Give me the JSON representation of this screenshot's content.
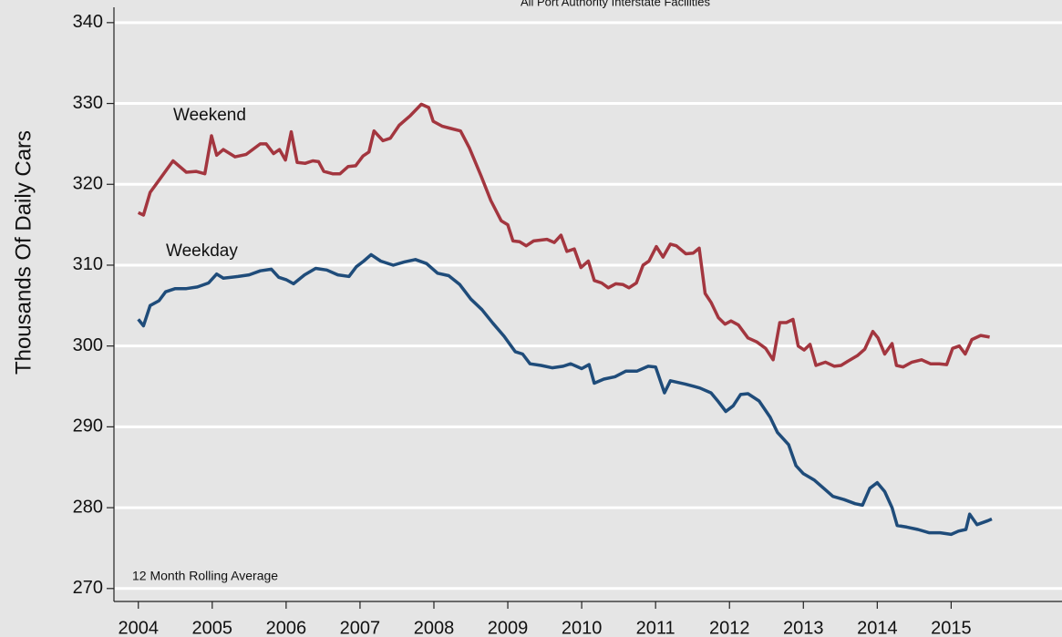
{
  "chart_data": {
    "type": "line",
    "title": "All Port Authority Interstate Facilities",
    "y_label": "Thousands Of Daily Cars",
    "annotation": "12 Month Rolling Average",
    "xlim": [
      2003.67,
      2016.5
    ],
    "xticks": [
      2004,
      2005,
      2006,
      2007,
      2008,
      2009,
      2010,
      2011,
      2012,
      2013,
      2014,
      2015
    ],
    "ylim": [
      268.4,
      342.8
    ],
    "yticks": [
      270,
      280,
      290,
      300,
      310,
      320,
      330,
      340
    ],
    "grid": true,
    "series": [
      {
        "name": "Weekend",
        "color": "#a3363f",
        "x": [
          2004.0,
          2004.07,
          2004.16,
          2004.28,
          2004.47,
          2004.65,
          2004.78,
          2004.9,
          2004.99,
          2005.06,
          2005.15,
          2005.31,
          2005.46,
          2005.65,
          2005.73,
          2005.83,
          2005.91,
          2005.99,
          2006.07,
          2006.15,
          2006.26,
          2006.36,
          2006.44,
          2006.51,
          2006.63,
          2006.73,
          2006.84,
          2006.94,
          2007.04,
          2007.12,
          2007.19,
          2007.31,
          2007.41,
          2007.53,
          2007.68,
          2007.83,
          2007.93,
          2007.99,
          2008.11,
          2008.23,
          2008.36,
          2008.48,
          2008.64,
          2008.77,
          2008.91,
          2009.0,
          2009.07,
          2009.16,
          2009.25,
          2009.35,
          2009.53,
          2009.63,
          2009.72,
          2009.8,
          2009.9,
          2009.99,
          2010.09,
          2010.17,
          2010.27,
          2010.36,
          2010.46,
          2010.56,
          2010.64,
          2010.74,
          2010.83,
          2010.91,
          2011.01,
          2011.1,
          2011.2,
          2011.28,
          2011.41,
          2011.51,
          2011.59,
          2011.67,
          2011.75,
          2011.85,
          2011.94,
          2012.02,
          2012.12,
          2012.25,
          2012.37,
          2012.49,
          2012.59,
          2012.68,
          2012.77,
          2012.86,
          2012.93,
          2013.01,
          2013.09,
          2013.17,
          2013.3,
          2013.42,
          2013.51,
          2013.6,
          2013.73,
          2013.83,
          2013.94,
          2014.01,
          2014.1,
          2014.2,
          2014.26,
          2014.35,
          2014.47,
          2014.6,
          2014.72,
          2014.84,
          2014.94,
          2015.02,
          2015.11,
          2015.19,
          2015.28,
          2015.4,
          2015.52
        ],
        "values": [
          316.5,
          316.2,
          319,
          320.5,
          322.9,
          321.5,
          321.6,
          321.3,
          326,
          323.6,
          324.3,
          323.4,
          323.7,
          325,
          325,
          323.8,
          324.3,
          323,
          326.5,
          322.7,
          322.6,
          322.9,
          322.8,
          321.6,
          321.3,
          321.3,
          322.2,
          322.3,
          323.5,
          324,
          326.6,
          325.4,
          325.7,
          327.3,
          328.5,
          329.9,
          329.5,
          327.8,
          327.2,
          326.9,
          326.6,
          324.5,
          321,
          318,
          315.5,
          315,
          313,
          312.9,
          312.4,
          313,
          313.2,
          312.8,
          313.7,
          311.7,
          312,
          309.7,
          310.5,
          308.1,
          307.8,
          307.2,
          307.7,
          307.6,
          307.2,
          307.8,
          310,
          310.5,
          312.3,
          311,
          312.6,
          312.4,
          311.4,
          311.5,
          312.1,
          306.5,
          305.4,
          303.5,
          302.7,
          303.1,
          302.6,
          301,
          300.5,
          299.7,
          298.3,
          302.9,
          302.9,
          303.3,
          300,
          299.5,
          300.2,
          297.6,
          298,
          297.5,
          297.6,
          298.1,
          298.8,
          299.6,
          301.8,
          301,
          299,
          300.3,
          297.6,
          297.4,
          298,
          298.3,
          297.8,
          297.8,
          297.7,
          299.7,
          300,
          299,
          300.8,
          301.3,
          301.1
        ]
      },
      {
        "name": "Weekday",
        "color": "#1f4c7a",
        "x": [
          2004.0,
          2004.07,
          2004.16,
          2004.28,
          2004.37,
          2004.5,
          2004.65,
          2004.8,
          2004.95,
          2005.06,
          2005.15,
          2005.35,
          2005.5,
          2005.65,
          2005.8,
          2005.9,
          2006.0,
          2006.1,
          2006.25,
          2006.4,
          2006.55,
          2006.7,
          2006.85,
          2006.95,
          2007.05,
          2007.15,
          2007.28,
          2007.45,
          2007.6,
          2007.75,
          2007.9,
          2008.05,
          2008.2,
          2008.35,
          2008.5,
          2008.65,
          2008.8,
          2008.95,
          2009.1,
          2009.2,
          2009.3,
          2009.45,
          2009.6,
          2009.75,
          2009.85,
          2010.0,
          2010.1,
          2010.17,
          2010.3,
          2010.45,
          2010.6,
          2010.75,
          2010.9,
          2011.0,
          2011.12,
          2011.2,
          2011.4,
          2011.6,
          2011.75,
          2011.85,
          2011.95,
          2012.05,
          2012.15,
          2012.25,
          2012.4,
          2012.55,
          2012.65,
          2012.8,
          2012.9,
          2013.0,
          2013.15,
          2013.3,
          2013.4,
          2013.55,
          2013.7,
          2013.8,
          2013.9,
          2014.0,
          2014.1,
          2014.2,
          2014.27,
          2014.4,
          2014.55,
          2014.7,
          2014.85,
          2015.0,
          2015.1,
          2015.2,
          2015.25,
          2015.35,
          2015.5,
          2015.55
        ],
        "values": [
          303.3,
          302.5,
          305,
          305.6,
          306.7,
          307.1,
          307.1,
          307.3,
          307.8,
          308.9,
          308.4,
          308.6,
          308.8,
          309.3,
          309.5,
          308.5,
          308.2,
          307.7,
          308.8,
          309.6,
          309.4,
          308.8,
          308.6,
          309.8,
          310.5,
          311.3,
          310.5,
          310,
          310.4,
          310.7,
          310.2,
          309,
          308.7,
          307.6,
          305.8,
          304.5,
          302.8,
          301.2,
          299.3,
          299,
          297.8,
          297.6,
          297.3,
          297.5,
          297.8,
          297.2,
          297.7,
          295.4,
          295.9,
          296.2,
          296.9,
          296.9,
          297.5,
          297.4,
          294.2,
          295.7,
          295.3,
          294.8,
          294.2,
          293.1,
          291.9,
          292.6,
          294,
          294.1,
          293.2,
          291.2,
          289.3,
          287.8,
          285.2,
          284.2,
          283.4,
          282.2,
          281.4,
          281,
          280.5,
          280.3,
          282.4,
          283.1,
          282,
          280,
          277.8,
          277.6,
          277.3,
          276.9,
          276.9,
          276.7,
          277.1,
          277.3,
          279.2,
          277.9,
          278.4,
          278.6
        ]
      }
    ]
  }
}
